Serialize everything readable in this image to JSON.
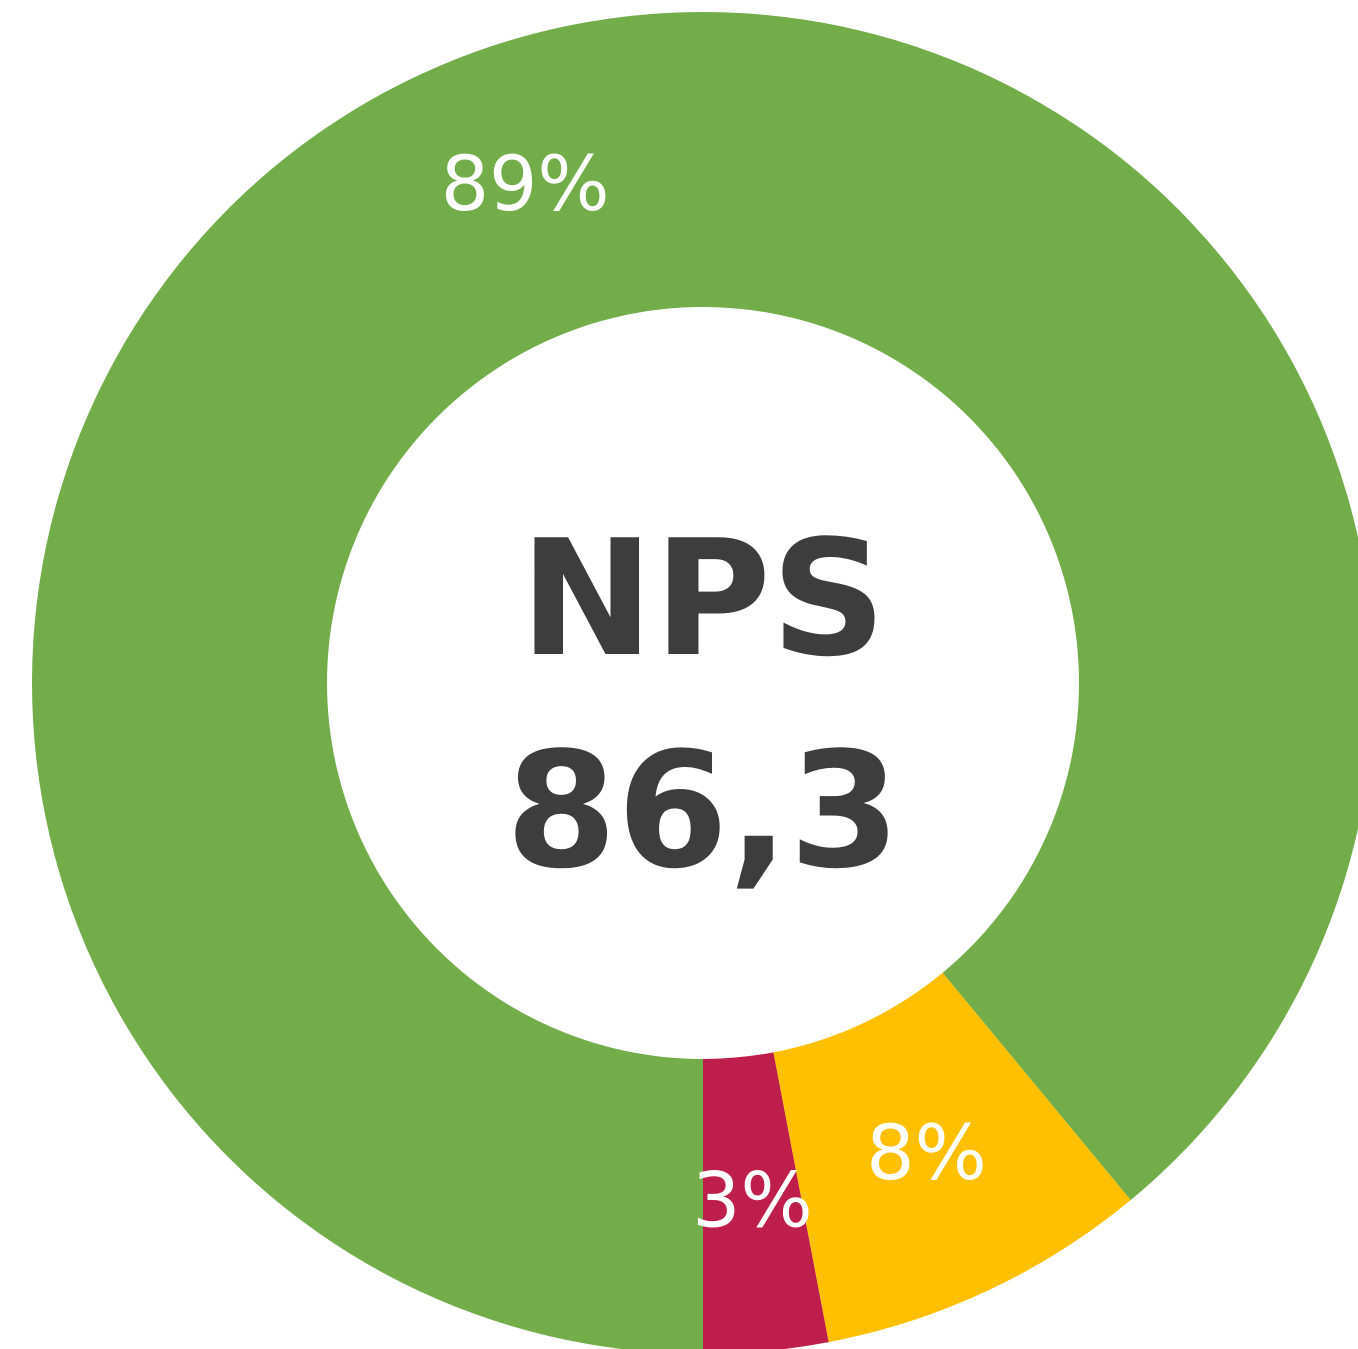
{
  "chart_data": {
    "type": "donut",
    "values": [
      3,
      8,
      89
    ],
    "value_labels": [
      "3%",
      "8%",
      "89%"
    ],
    "colors": [
      "#be1e4b",
      "#fec000",
      "#72ad4a"
    ],
    "center_text": [
      "NPS",
      "86,3"
    ]
  }
}
